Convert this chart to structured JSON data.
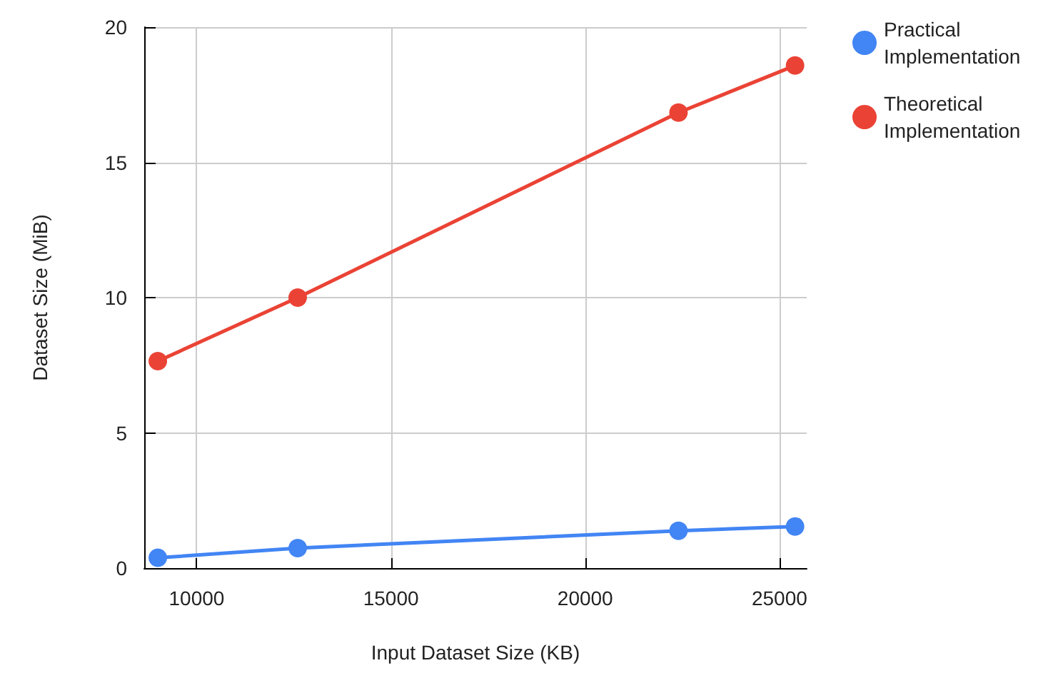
{
  "chart_data": {
    "type": "line",
    "xlabel": "Input Dataset Size (KB)",
    "ylabel": "Dataset Size (MiB)",
    "x": [
      9000,
      12600,
      22400,
      25400
    ],
    "series": [
      {
        "name": "Practical Implementation",
        "color": "#4285f4",
        "values": [
          0.38,
          0.74,
          1.38,
          1.54
        ]
      },
      {
        "name": "Theoretical Implementation",
        "color": "#ea4335",
        "values": [
          7.65,
          10.0,
          16.84,
          18.58
        ]
      }
    ],
    "xlim": [
      8650,
      25700
    ],
    "xticks": [
      10000,
      15000,
      20000,
      25000
    ],
    "ylim": [
      0,
      20
    ],
    "yticks": [
      0,
      5,
      10,
      15,
      20
    ],
    "grid": true,
    "legend": "top right",
    "marker": "circle",
    "line_style": "solid"
  }
}
